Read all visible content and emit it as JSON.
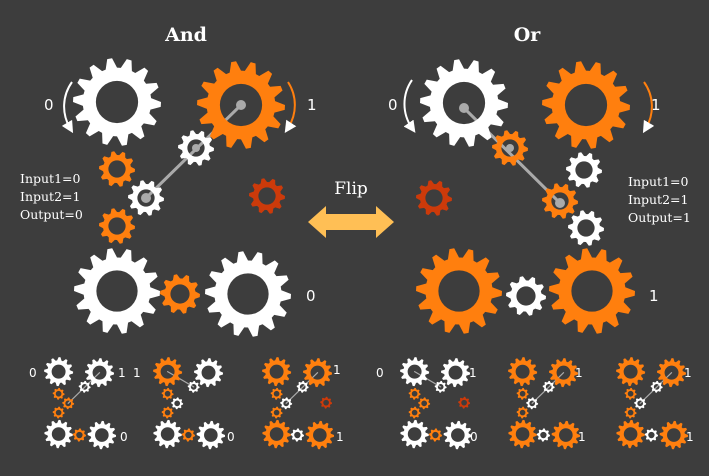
{
  "colors": {
    "background": "#3d3d3d",
    "white_gear": "#ffffff",
    "orange_gear": "#ff7f0e",
    "red_gear": "#cc3a0a",
    "arrow": "#ffbf55",
    "link": "#aaaaaa"
  },
  "and_panel": {
    "title": "And",
    "input1_state": "0",
    "input2_state": "1",
    "output_state": "0",
    "readout": {
      "input1": "Input1=0",
      "input2": "Input2=1",
      "output": "Output=0"
    }
  },
  "or_panel": {
    "title": "Or",
    "input1_state": "0",
    "input2_state": "1",
    "output_state": "1",
    "readout": {
      "input1": "Input1=0",
      "input2": "Input2=1",
      "output": "Output=1"
    }
  },
  "flip_label": "Flip",
  "and_examples": [
    {
      "in1": "0",
      "in2": "1",
      "out": "0"
    },
    {
      "in1": "1",
      "out": "0"
    },
    {
      "in2": "1",
      "out": "1"
    }
  ],
  "or_examples": [
    {
      "in1": "0",
      "in2": "1",
      "out": "0"
    },
    {
      "in2": "1",
      "out": "1"
    },
    {
      "in2": "1",
      "out": "1"
    }
  ]
}
